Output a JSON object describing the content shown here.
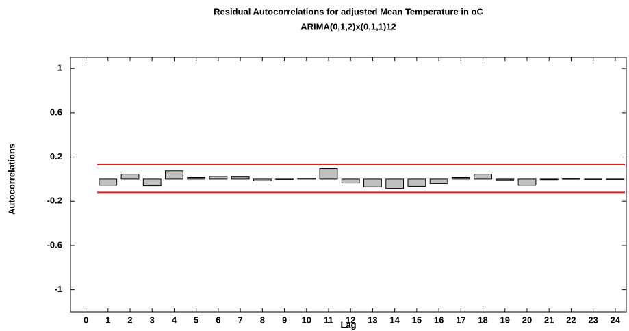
{
  "chart_data": {
    "type": "bar",
    "title": "Residual Autocorrelations for adjusted Mean Temperature in oC",
    "subtitle": "ARIMA(0,1,2)x(0,1,1)12",
    "xlabel": "Lag",
    "ylabel": "Autocorrelations",
    "x": [
      1,
      2,
      3,
      4,
      5,
      6,
      7,
      8,
      9,
      10,
      11,
      12,
      13,
      14,
      15,
      16,
      17,
      18,
      19,
      20,
      21,
      22,
      23,
      24
    ],
    "values": [
      -0.055,
      0.045,
      -0.06,
      0.075,
      0.015,
      0.025,
      0.02,
      -0.015,
      0.0,
      0.008,
      0.095,
      -0.035,
      -0.07,
      -0.085,
      -0.065,
      -0.04,
      0.015,
      0.045,
      -0.008,
      -0.055,
      -0.005,
      0.002,
      -0.002,
      0.0
    ],
    "color": "#c0c0c0",
    "limits": {
      "color": "#e02020",
      "upper": 0.13,
      "lower": -0.12
    },
    "xlim": [
      -0.7,
      24.5
    ],
    "xticks": [
      0,
      1,
      2,
      3,
      4,
      5,
      6,
      7,
      8,
      9,
      10,
      11,
      12,
      13,
      14,
      15,
      16,
      17,
      18,
      19,
      20,
      21,
      22,
      23,
      24
    ],
    "ylim": [
      -1.2,
      1.1
    ],
    "yticks": [
      -1,
      -0.6,
      -0.2,
      0.2,
      0.6,
      1
    ]
  }
}
